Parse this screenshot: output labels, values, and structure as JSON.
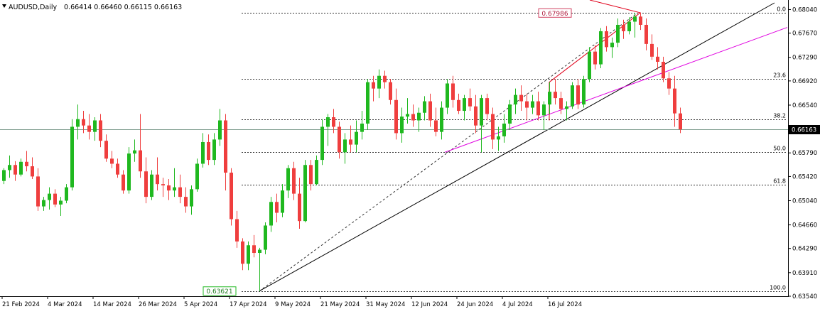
{
  "header": {
    "symbol": "AUDUSD,Daily",
    "ohlc": "0.66414 0.66460 0.66115 0.66163"
  },
  "colors": {
    "bull": "#1fb81f",
    "bear": "#ef3e3e",
    "fib": "#333333",
    "trend": "#000000",
    "magenta": "#e000e0",
    "red_line": "#e0001a",
    "price_line": "#7a9a8a",
    "axis": "#000000",
    "price_box": "#000000"
  },
  "chart_data": {
    "type": "candlestick",
    "symbol": "AUDUSD",
    "timeframe": "Daily",
    "ylim": [
      0.6354,
      0.6819
    ],
    "y_ticks": [
      "0.68040",
      "0.67670",
      "0.67290",
      "0.66920",
      "0.66540",
      "0.66163",
      "0.65790",
      "0.65420",
      "0.65040",
      "0.64660",
      "0.64290",
      "0.63910",
      "0.63540"
    ],
    "x_ticks": [
      "21 Feb 2024",
      "4 Mar 2024",
      "14 Mar 2024",
      "26 Mar 2024",
      "5 Apr 2024",
      "17 Apr 2024",
      "9 May 2024",
      "21 May 2024",
      "31 May 2024",
      "12 Jun 2024",
      "24 Jun 2024",
      "4 Jul 2024",
      "16 Jul 2024"
    ],
    "current_price": "0.66163",
    "swing_low_label": "0.63621",
    "swing_high_label": "0.67986",
    "fib_levels": [
      {
        "label": "0.0",
        "price": 0.67986
      },
      {
        "label": "23.6",
        "price": 0.66956
      },
      {
        "label": "38.2",
        "price": 0.66319
      },
      {
        "label": "50.0",
        "price": 0.65804
      },
      {
        "label": "61.8",
        "price": 0.65289
      },
      {
        "label": "100.0",
        "price": 0.63621
      }
    ],
    "candles": [
      [
        0.6535,
        0.6555,
        0.653,
        0.6552
      ],
      [
        0.6552,
        0.6575,
        0.654,
        0.656
      ],
      [
        0.656,
        0.6566,
        0.6535,
        0.6545
      ],
      [
        0.6545,
        0.657,
        0.6542,
        0.6565
      ],
      [
        0.6565,
        0.6582,
        0.655,
        0.6558
      ],
      [
        0.6558,
        0.6572,
        0.6538,
        0.6542
      ],
      [
        0.6542,
        0.6555,
        0.6488,
        0.6495
      ],
      [
        0.6495,
        0.651,
        0.6488,
        0.6505
      ],
      [
        0.6505,
        0.6525,
        0.649,
        0.6515
      ],
      [
        0.6515,
        0.6522,
        0.6494,
        0.6498
      ],
      [
        0.6498,
        0.651,
        0.648,
        0.6504
      ],
      [
        0.6504,
        0.653,
        0.65,
        0.6525
      ],
      [
        0.6525,
        0.6632,
        0.652,
        0.662
      ],
      [
        0.662,
        0.6655,
        0.66,
        0.6632
      ],
      [
        0.6632,
        0.6645,
        0.661,
        0.6622
      ],
      [
        0.6622,
        0.664,
        0.66,
        0.6612
      ],
      [
        0.6612,
        0.6635,
        0.6598,
        0.663
      ],
      [
        0.663,
        0.664,
        0.6588,
        0.6598
      ],
      [
        0.6598,
        0.6608,
        0.6565,
        0.657
      ],
      [
        0.657,
        0.6582,
        0.6555,
        0.6562
      ],
      [
        0.6562,
        0.657,
        0.654,
        0.6545
      ],
      [
        0.6545,
        0.6552,
        0.6515,
        0.652
      ],
      [
        0.652,
        0.6588,
        0.6515,
        0.6578
      ],
      [
        0.6578,
        0.66,
        0.6565,
        0.6583
      ],
      [
        0.6583,
        0.664,
        0.654,
        0.655
      ],
      [
        0.655,
        0.6572,
        0.65,
        0.651
      ],
      [
        0.651,
        0.6552,
        0.6505,
        0.6545
      ],
      [
        0.6545,
        0.6572,
        0.652,
        0.653
      ],
      [
        0.653,
        0.654,
        0.651,
        0.6528
      ],
      [
        0.6528,
        0.6538,
        0.6505,
        0.652
      ],
      [
        0.652,
        0.6555,
        0.651,
        0.6525
      ],
      [
        0.6525,
        0.6545,
        0.65,
        0.651
      ],
      [
        0.651,
        0.6525,
        0.6485,
        0.6495
      ],
      [
        0.6495,
        0.6528,
        0.6482,
        0.6522
      ],
      [
        0.6522,
        0.657,
        0.6518,
        0.6562
      ],
      [
        0.6562,
        0.661,
        0.6556,
        0.6596
      ],
      [
        0.6596,
        0.6608,
        0.656,
        0.6568
      ],
      [
        0.6568,
        0.661,
        0.656,
        0.66
      ],
      [
        0.66,
        0.6648,
        0.659,
        0.663
      ],
      [
        0.663,
        0.664,
        0.652,
        0.6548
      ],
      [
        0.6548,
        0.6555,
        0.6465,
        0.6475
      ],
      [
        0.6475,
        0.6488,
        0.643,
        0.644
      ],
      [
        0.644,
        0.6445,
        0.6395,
        0.6405
      ],
      [
        0.6405,
        0.644,
        0.6395,
        0.6434
      ],
      [
        0.6434,
        0.645,
        0.6415,
        0.6422
      ],
      [
        0.6422,
        0.643,
        0.6362,
        0.6427
      ],
      [
        0.6427,
        0.647,
        0.642,
        0.6465
      ],
      [
        0.6465,
        0.651,
        0.6455,
        0.6502
      ],
      [
        0.6502,
        0.6515,
        0.647,
        0.6485
      ],
      [
        0.6485,
        0.653,
        0.6478,
        0.652
      ],
      [
        0.652,
        0.656,
        0.6508,
        0.6555
      ],
      [
        0.6555,
        0.6565,
        0.6505,
        0.6515
      ],
      [
        0.6515,
        0.654,
        0.646,
        0.6472
      ],
      [
        0.6472,
        0.6568,
        0.647,
        0.656
      ],
      [
        0.656,
        0.6568,
        0.652,
        0.653
      ],
      [
        0.653,
        0.6575,
        0.6528,
        0.6568
      ],
      [
        0.6568,
        0.6632,
        0.656,
        0.662
      ],
      [
        0.662,
        0.664,
        0.659,
        0.6635
      ],
      [
        0.6635,
        0.6648,
        0.661,
        0.662
      ],
      [
        0.662,
        0.6628,
        0.657,
        0.658
      ],
      [
        0.658,
        0.661,
        0.6562,
        0.66
      ],
      [
        0.66,
        0.6622,
        0.658,
        0.6592
      ],
      [
        0.6592,
        0.663,
        0.658,
        0.6612
      ],
      [
        0.6612,
        0.6645,
        0.66,
        0.6625
      ],
      [
        0.6625,
        0.6695,
        0.6615,
        0.669
      ],
      [
        0.669,
        0.67,
        0.666,
        0.668
      ],
      [
        0.668,
        0.671,
        0.6665,
        0.67
      ],
      [
        0.67,
        0.6708,
        0.668,
        0.669
      ],
      [
        0.669,
        0.6695,
        0.6655,
        0.6662
      ],
      [
        0.6662,
        0.668,
        0.66,
        0.661
      ],
      [
        0.661,
        0.665,
        0.6595,
        0.6636
      ],
      [
        0.6636,
        0.6665,
        0.6625,
        0.664
      ],
      [
        0.664,
        0.6655,
        0.662,
        0.663
      ],
      [
        0.663,
        0.665,
        0.6612,
        0.6642
      ],
      [
        0.6642,
        0.6668,
        0.663,
        0.666
      ],
      [
        0.666,
        0.6672,
        0.662,
        0.663
      ],
      [
        0.663,
        0.665,
        0.6605,
        0.6612
      ],
      [
        0.6612,
        0.666,
        0.66,
        0.665
      ],
      [
        0.665,
        0.6695,
        0.664,
        0.6688
      ],
      [
        0.6688,
        0.67,
        0.665,
        0.6662
      ],
      [
        0.6662,
        0.6672,
        0.664,
        0.6645
      ],
      [
        0.6645,
        0.667,
        0.663,
        0.6665
      ],
      [
        0.6665,
        0.668,
        0.6645,
        0.6652
      ],
      [
        0.6652,
        0.667,
        0.661,
        0.6622
      ],
      [
        0.6622,
        0.667,
        0.658,
        0.6665
      ],
      [
        0.6665,
        0.6672,
        0.663,
        0.664
      ],
      [
        0.664,
        0.665,
        0.6585,
        0.66
      ],
      [
        0.66,
        0.662,
        0.6582,
        0.6605
      ],
      [
        0.6605,
        0.664,
        0.6595,
        0.6625
      ],
      [
        0.6625,
        0.6662,
        0.6615,
        0.6655
      ],
      [
        0.6655,
        0.668,
        0.664,
        0.667
      ],
      [
        0.667,
        0.6685,
        0.6645,
        0.666
      ],
      [
        0.666,
        0.6672,
        0.663,
        0.665
      ],
      [
        0.665,
        0.667,
        0.664,
        0.666
      ],
      [
        0.666,
        0.6675,
        0.663,
        0.6638
      ],
      [
        0.6638,
        0.666,
        0.6615,
        0.6655
      ],
      [
        0.6655,
        0.669,
        0.664,
        0.6675
      ],
      [
        0.6675,
        0.6695,
        0.6655,
        0.6665
      ],
      [
        0.6665,
        0.6675,
        0.664,
        0.6648
      ],
      [
        0.6648,
        0.666,
        0.663,
        0.6652
      ],
      [
        0.6652,
        0.669,
        0.6648,
        0.6685
      ],
      [
        0.6685,
        0.6695,
        0.6648,
        0.6655
      ],
      [
        0.6655,
        0.67,
        0.665,
        0.6695
      ],
      [
        0.6695,
        0.6745,
        0.669,
        0.6738
      ],
      [
        0.6738,
        0.6748,
        0.671,
        0.6718
      ],
      [
        0.6718,
        0.6775,
        0.6712,
        0.677
      ],
      [
        0.677,
        0.6778,
        0.6738,
        0.6745
      ],
      [
        0.6745,
        0.676,
        0.6728,
        0.6752
      ],
      [
        0.6752,
        0.679,
        0.6745,
        0.678
      ],
      [
        0.678,
        0.6788,
        0.6758,
        0.677
      ],
      [
        0.677,
        0.6792,
        0.6765,
        0.6785
      ],
      [
        0.6785,
        0.6799,
        0.676,
        0.6793
      ],
      [
        0.6793,
        0.6799,
        0.6772,
        0.678
      ],
      [
        0.678,
        0.679,
        0.674,
        0.675
      ],
      [
        0.675,
        0.6765,
        0.6725,
        0.673
      ],
      [
        0.673,
        0.6745,
        0.671,
        0.6722
      ],
      [
        0.6722,
        0.673,
        0.669,
        0.6696
      ],
      [
        0.6696,
        0.6706,
        0.667,
        0.668
      ],
      [
        0.668,
        0.67,
        0.662,
        0.6641
      ],
      [
        0.6641,
        0.665,
        0.661,
        0.6616
      ]
    ]
  }
}
